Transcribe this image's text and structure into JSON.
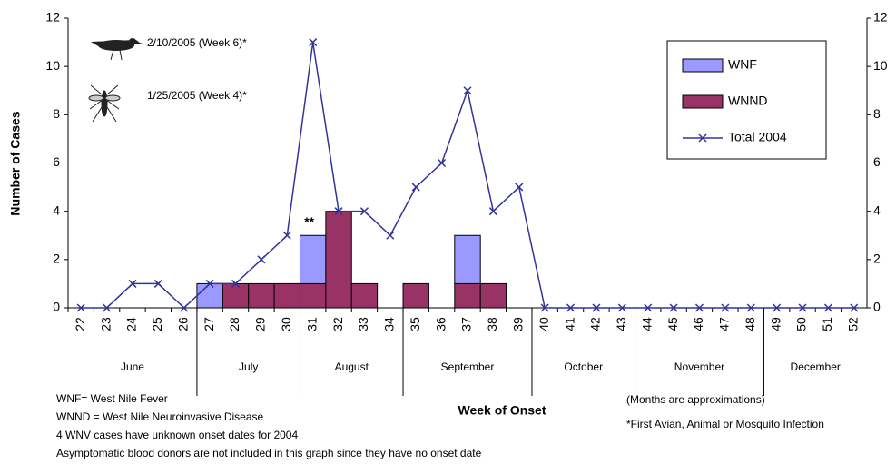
{
  "chart_data": {
    "type": "bar",
    "stacked": true,
    "y_label": "Number of Cases",
    "x_label": "Week of Onset",
    "categories": [
      "22",
      "23",
      "24",
      "25",
      "26",
      "27",
      "28",
      "29",
      "30",
      "31",
      "32",
      "33",
      "34",
      "35",
      "36",
      "37",
      "38",
      "39",
      "40",
      "41",
      "42",
      "43",
      "44",
      "45",
      "46",
      "47",
      "48",
      "49",
      "50",
      "51",
      "52"
    ],
    "months": [
      "June",
      "July",
      "August",
      "September",
      "October",
      "November",
      "December"
    ],
    "series": [
      {
        "name": "WNF",
        "type": "bar",
        "color": "#9999ff",
        "values": [
          0,
          0,
          0,
          0,
          0,
          1,
          0,
          0,
          0,
          2,
          0,
          0,
          0,
          0,
          0,
          2,
          0,
          0,
          0,
          0,
          0,
          0,
          0,
          0,
          0,
          0,
          0,
          0,
          0,
          0,
          0
        ]
      },
      {
        "name": "WNND",
        "type": "bar",
        "color": "#993366",
        "values": [
          0,
          0,
          0,
          0,
          0,
          0,
          1,
          1,
          1,
          1,
          4,
          1,
          0,
          1,
          0,
          1,
          1,
          0,
          0,
          0,
          0,
          0,
          0,
          0,
          0,
          0,
          0,
          0,
          0,
          0,
          0
        ]
      },
      {
        "name": "Total 2004",
        "type": "line",
        "axis": "y2",
        "color": "#333399",
        "values": [
          0,
          0,
          1,
          1,
          0,
          1,
          1,
          2,
          3,
          11,
          4,
          4,
          3,
          5,
          6,
          9,
          4,
          5,
          0,
          0,
          0,
          0,
          0,
          0,
          0,
          0,
          0,
          0,
          0,
          0,
          0
        ]
      }
    ],
    "ylim": [
      0,
      12
    ],
    "yticks": [
      0,
      2,
      4,
      6,
      8,
      10,
      12
    ],
    "y2lim": [
      0,
      12
    ],
    "y2ticks": [
      0,
      2,
      4,
      6,
      8,
      10,
      12
    ],
    "grid": false,
    "annotations": [
      "**"
    ],
    "first_infections": [
      "2/10/2005 (Week 6)*",
      "1/25/2005  (Week 4)*"
    ],
    "footnotes": [
      "WNF= West Nile Fever",
      "WNND = West Nile Neuroinvasive Disease",
      "4 WNV cases have unknown onset dates for 2004",
      "Asymptomatic blood donors are not included in this graph since they have no onset date"
    ],
    "notes": [
      "(Months are approximations)",
      "*First Avian, Animal or Mosquito Infection"
    ]
  }
}
